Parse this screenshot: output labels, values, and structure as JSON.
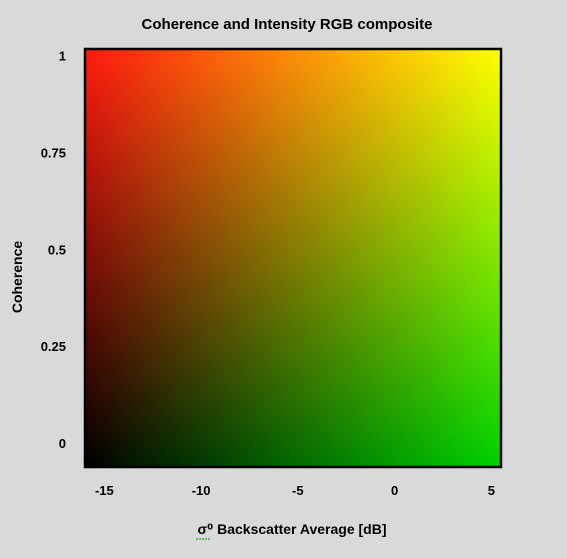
{
  "chart_data": {
    "type": "heatmap",
    "title": "Coherence and Intensity RGB composite",
    "xlabel": "σ⁰ Backscatter Average [dB]",
    "ylabel": "Coherence",
    "xlim": [
      -16,
      5.5
    ],
    "ylim": [
      -0.06,
      1.02
    ],
    "xticks": [
      -15,
      -10,
      -5,
      0,
      5
    ],
    "xtick_labels": [
      "-15",
      "-10",
      "-5",
      "0",
      "5"
    ],
    "yticks": [
      0,
      0.25,
      0.5,
      0.75,
      1
    ],
    "ytick_labels": [
      "0",
      "0.25",
      "0.5",
      "0.75",
      "1"
    ],
    "grid": false,
    "legend": "none",
    "color_mapping": {
      "red_channel": "coherence",
      "green_channel": "backscatter intensity",
      "blue_channel": "none"
    },
    "corner_colors": {
      "low_backscatter_low_coherence": "#000000",
      "high_backscatter_low_coherence": "#00d200",
      "low_backscatter_high_coherence": "#ff1a0f",
      "high_backscatter_high_coherence": "#ffff00"
    }
  }
}
